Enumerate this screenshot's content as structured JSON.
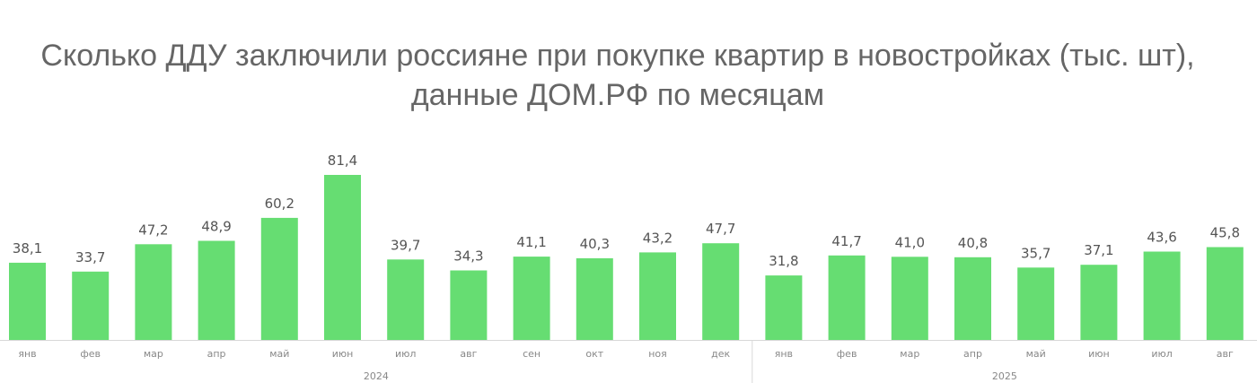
{
  "chart_data": {
    "type": "bar",
    "title": "Сколько ДДУ заключили россияне при покупке квартир в новостройках (тыс. шт), данные ДОМ.РФ по месяцам",
    "title_lines": [
      "Сколько ДДУ заключили россияне при покупке квартир в новостройках (тыс. шт),",
      "данные ДОМ.РФ по месяцам"
    ],
    "categories": [
      "янв",
      "фев",
      "мар",
      "апр",
      "май",
      "июн",
      "июл",
      "авг",
      "сен",
      "окт",
      "ноя",
      "дек",
      "янв",
      "фев",
      "мар",
      "апр",
      "май",
      "июн",
      "июл",
      "авг"
    ],
    "values": [
      38.1,
      33.7,
      47.2,
      48.9,
      60.2,
      81.4,
      39.7,
      34.3,
      41.1,
      40.3,
      43.2,
      47.7,
      31.8,
      41.7,
      41.0,
      40.8,
      35.7,
      37.1,
      43.6,
      45.8
    ],
    "value_labels": [
      "38,1",
      "33,7",
      "47,2",
      "48,9",
      "60,2",
      "81,4",
      "39,7",
      "34,3",
      "41,1",
      "40,3",
      "43,2",
      "47,7",
      "31,8",
      "41,7",
      "41,0",
      "40,8",
      "35,7",
      "37,1",
      "43,6",
      "45,8"
    ],
    "groups": [
      {
        "label": "2024",
        "count": 12
      },
      {
        "label": "2025",
        "count": 8
      }
    ],
    "xlabel": "",
    "ylabel": "",
    "ylim": [
      0,
      100
    ],
    "grid": false,
    "legend": "none",
    "bar_color": "#66dd72"
  }
}
